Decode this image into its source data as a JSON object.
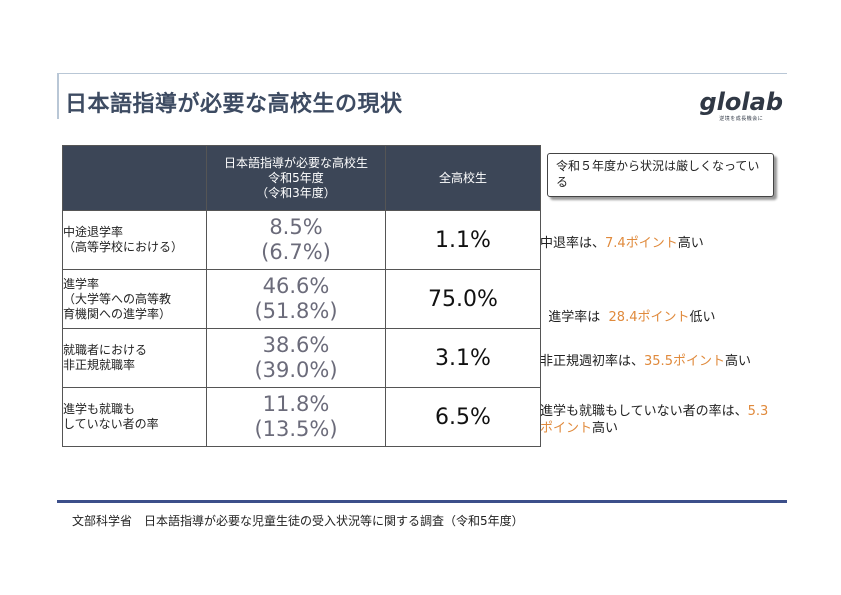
{
  "title": "日本語指導が必要な高校生の現状",
  "logo": {
    "name": "glolab",
    "tagline": "逆境を成長機会に"
  },
  "table": {
    "header_col1": [
      "日本語指導が必要な高校生",
      "令和5年度",
      "（令和3年度）"
    ],
    "header_col2": "全高校生",
    "rows": [
      {
        "label": [
          "中途退学率",
          "（高等学校における）"
        ],
        "current": "8.5%",
        "previous": "(6.7%)",
        "all": "1.1%"
      },
      {
        "label": [
          "進学率",
          "（大学等への高等教",
          "育機関への進学率）"
        ],
        "current": "46.6%",
        "previous": "(51.8%)",
        "all": "75.0%"
      },
      {
        "label": [
          "就職者における",
          "非正規就職率"
        ],
        "current": "38.6%",
        "previous": "(39.0%)",
        "all": "3.1%"
      },
      {
        "label": [
          "進学も就職も",
          "していない者の率"
        ],
        "current": "11.8%",
        "previous": "(13.5%)",
        "all": "6.5%"
      }
    ]
  },
  "callout": "令和５年度から状況は厳しくなっている",
  "comments": [
    {
      "pre": "中退率は、",
      "highlight": "7.4ポイント",
      "post": "高い"
    },
    {
      "pre": "進学率は  ",
      "highlight": "28.4ポイント",
      "post": "低い"
    },
    {
      "pre": "非正規週初率は、",
      "highlight": "35.5ポイント",
      "post": "高い"
    },
    {
      "pre": "進学も就職もしていない者の率は、",
      "highlight": "5.3ポイント",
      "post": "高い"
    }
  ],
  "footer": "文部科学省　日本語指導が必要な児童生徒の受入状況等に関する調査（令和5年度）",
  "colors": {
    "header_bg": "#3c4657",
    "accent": "#e08a3c",
    "footer_line": "#3c4f8a"
  }
}
